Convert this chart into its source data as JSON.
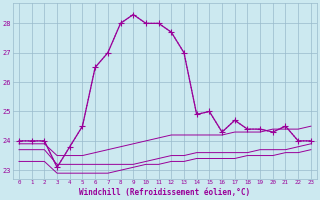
{
  "xlabel": "Windchill (Refroidissement éolien,°C)",
  "hours": [
    0,
    1,
    2,
    3,
    4,
    5,
    6,
    7,
    8,
    9,
    10,
    11,
    12,
    13,
    14,
    15,
    16,
    17,
    18,
    19,
    20,
    21,
    22,
    23
  ],
  "windchill": [
    24.0,
    24.0,
    24.0,
    23.1,
    23.8,
    24.5,
    26.5,
    27.0,
    28.0,
    28.3,
    28.0,
    28.0,
    27.7,
    27.0,
    24.9,
    25.0,
    24.3,
    24.7,
    24.4,
    24.4,
    24.3,
    24.5,
    24.0,
    24.0
  ],
  "temp_lower1": [
    23.7,
    23.7,
    23.7,
    23.2,
    23.2,
    23.2,
    23.2,
    23.2,
    23.2,
    23.2,
    23.3,
    23.4,
    23.5,
    23.5,
    23.6,
    23.6,
    23.6,
    23.6,
    23.6,
    23.7,
    23.7,
    23.7,
    23.8,
    23.9
  ],
  "temp_lower2": [
    23.3,
    23.3,
    23.3,
    22.9,
    22.9,
    22.9,
    22.9,
    22.9,
    23.0,
    23.1,
    23.2,
    23.2,
    23.3,
    23.3,
    23.4,
    23.4,
    23.4,
    23.4,
    23.5,
    23.5,
    23.5,
    23.6,
    23.6,
    23.7
  ],
  "temp_upper": [
    23.9,
    23.9,
    23.9,
    23.5,
    23.5,
    23.5,
    23.6,
    23.7,
    23.8,
    23.9,
    24.0,
    24.1,
    24.2,
    24.2,
    24.2,
    24.2,
    24.2,
    24.3,
    24.3,
    24.3,
    24.4,
    24.4,
    24.4,
    24.5
  ],
  "line_color": "#990099",
  "bg_color": "#cce9f0",
  "grid_color": "#99bbcc",
  "text_color": "#990099",
  "ylim": [
    22.7,
    28.7
  ],
  "yticks": [
    23,
    24,
    25,
    26,
    27,
    28
  ],
  "xlim": [
    -0.5,
    23.5
  ]
}
